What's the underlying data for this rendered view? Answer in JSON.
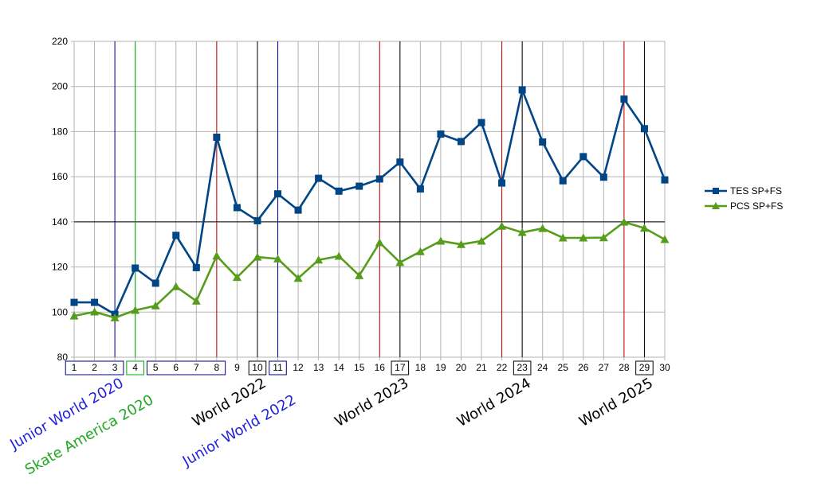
{
  "chart_data": {
    "type": "line",
    "title": "",
    "xlabel": "",
    "ylabel": "",
    "x": [
      1,
      2,
      3,
      4,
      5,
      6,
      7,
      8,
      9,
      10,
      11,
      12,
      13,
      14,
      15,
      16,
      17,
      18,
      19,
      20,
      21,
      22,
      23,
      24,
      25,
      26,
      27,
      28,
      29,
      30
    ],
    "x_tick_labels": [
      "1",
      "2",
      "3",
      "4",
      "5",
      "6",
      "7",
      "8",
      "9",
      "10",
      "11",
      "12",
      "13",
      "14",
      "15",
      "16",
      "17",
      "18",
      "19",
      "20",
      "21",
      "22",
      "23",
      "24",
      "25",
      "26",
      "27",
      "28",
      "29",
      "30"
    ],
    "xlim": [
      1,
      30
    ],
    "ylim": [
      80,
      220
    ],
    "y_ticks": [
      80,
      100,
      120,
      140,
      160,
      180,
      200,
      220
    ],
    "y_tick_labels": [
      "80",
      "100",
      "120",
      "140",
      "160",
      "180",
      "200",
      "220"
    ],
    "reference_line_y": 140,
    "grid": true,
    "legend_position": "right",
    "series": [
      {
        "name": "TES SP+FS",
        "color": "#004586",
        "marker": "square",
        "values": [
          104.3,
          104.3,
          99.0,
          119.5,
          112.8,
          134.0,
          119.7,
          177.5,
          146.3,
          140.5,
          152.4,
          145.2,
          159.3,
          153.6,
          155.8,
          159.0,
          166.5,
          154.6,
          178.9,
          175.6,
          184.0,
          157.2,
          198.5,
          175.4,
          158.2,
          168.9,
          159.8,
          194.4,
          181.3,
          158.6
        ]
      },
      {
        "name": "PCS SP+FS",
        "color": "#579d1c",
        "marker": "triangle",
        "values": [
          98.3,
          100.1,
          97.5,
          100.8,
          102.8,
          111.3,
          104.9,
          124.9,
          115.4,
          124.4,
          123.6,
          115.0,
          123.1,
          124.8,
          116.2,
          130.8,
          122.0,
          126.8,
          131.5,
          130.0,
          131.5,
          138.1,
          135.3,
          137.1,
          132.9,
          132.9,
          133.0,
          139.9,
          137.2,
          132.2
        ]
      }
    ],
    "event_lines": [
      {
        "x": 3,
        "color": "#0000aa"
      },
      {
        "x": 4,
        "color": "#00aa00"
      },
      {
        "x": 8,
        "color": "#cc0000"
      },
      {
        "x": 10,
        "color": "#000000"
      },
      {
        "x": 11,
        "color": "#0000aa"
      },
      {
        "x": 16,
        "color": "#cc0000"
      },
      {
        "x": 17,
        "color": "#000000"
      },
      {
        "x": 22,
        "color": "#cc0000"
      },
      {
        "x": 23,
        "color": "#000000"
      },
      {
        "x": 28,
        "color": "#cc0000"
      },
      {
        "x": 29,
        "color": "#000000"
      }
    ],
    "tick_boxes": [
      {
        "from": 1,
        "to": 3,
        "color": "#000080"
      },
      {
        "from": 4,
        "to": 4,
        "color": "#00aa00"
      },
      {
        "from": 5,
        "to": 8,
        "color": "#000080"
      },
      {
        "from": 10,
        "to": 10,
        "color": "#000000"
      },
      {
        "from": 11,
        "to": 11,
        "color": "#000080"
      },
      {
        "from": 17,
        "to": 17,
        "color": "#000000"
      },
      {
        "from": 23,
        "to": 23,
        "color": "#000000"
      },
      {
        "from": 29,
        "to": 29,
        "color": "#000000"
      }
    ],
    "annotations": [
      {
        "text": "Junior World 2020",
        "x": 3,
        "row": 0,
        "color": "#1f1fe0"
      },
      {
        "text": "Skate America 2020",
        "x": 4,
        "row": 1,
        "color": "#20a820"
      },
      {
        "text": "World 2022",
        "x": 10,
        "row": 0,
        "color": "#000000"
      },
      {
        "text": "Junior World 2022",
        "x": 11,
        "row": 1,
        "color": "#1f1fe0"
      },
      {
        "text": "World 2023",
        "x": 17,
        "row": 0,
        "color": "#000000"
      },
      {
        "text": "World 2024",
        "x": 23,
        "row": 0,
        "color": "#000000"
      },
      {
        "text": "World 2025",
        "x": 29,
        "row": 0,
        "color": "#000000"
      }
    ]
  }
}
